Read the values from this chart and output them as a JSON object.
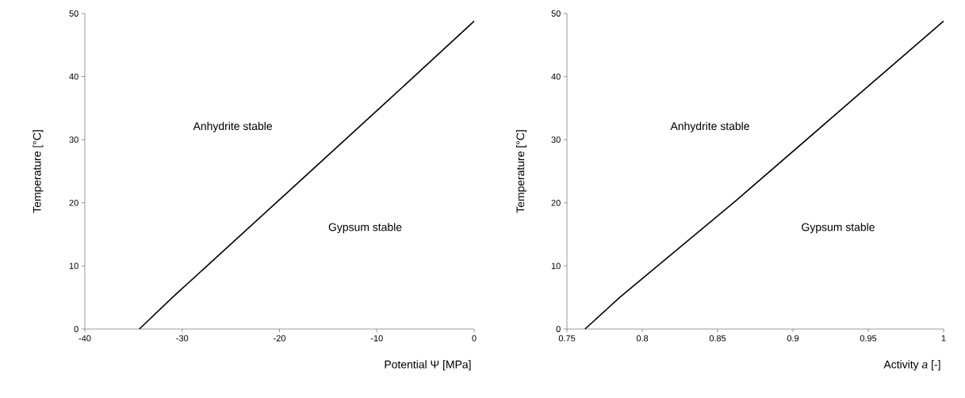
{
  "chart_data": [
    {
      "type": "line",
      "xlabel": "Potential Ψ [MPa]",
      "ylabel": "Temperature [°C]",
      "xlim": [
        -40,
        0
      ],
      "ylim": [
        0,
        50
      ],
      "xticks": [
        -40,
        -30,
        -20,
        -10,
        0
      ],
      "yticks": [
        0,
        10,
        20,
        30,
        40,
        50
      ],
      "marker": "none",
      "line_style": "solid",
      "series": [
        {
          "color": "#000000",
          "x": [
            -34.4,
            -31,
            -20,
            -9,
            0
          ],
          "values": [
            0,
            5,
            20.5,
            36,
            48.8
          ]
        }
      ],
      "annotations": [
        "Anhydrite stable",
        "Gypsum stable"
      ]
    },
    {
      "type": "line",
      "xlabel": "Activity *a* [-]",
      "ylabel": "Temperature [°C]",
      "xlim": [
        0.75,
        1
      ],
      "ylim": [
        0,
        50
      ],
      "xticks": [
        0.75,
        0.8,
        0.85,
        0.9,
        0.95,
        1
      ],
      "yticks": [
        0,
        10,
        20,
        30,
        40,
        50
      ],
      "marker": "none",
      "line_style": "solid",
      "series": [
        {
          "color": "#000000",
          "x": [
            0.762,
            0.785,
            0.862,
            0.938,
            1
          ],
          "values": [
            0,
            5,
            20.3,
            36,
            48.8
          ]
        }
      ],
      "annotations": [
        "Anhydrite stable",
        "Gypsum stable"
      ]
    }
  ]
}
